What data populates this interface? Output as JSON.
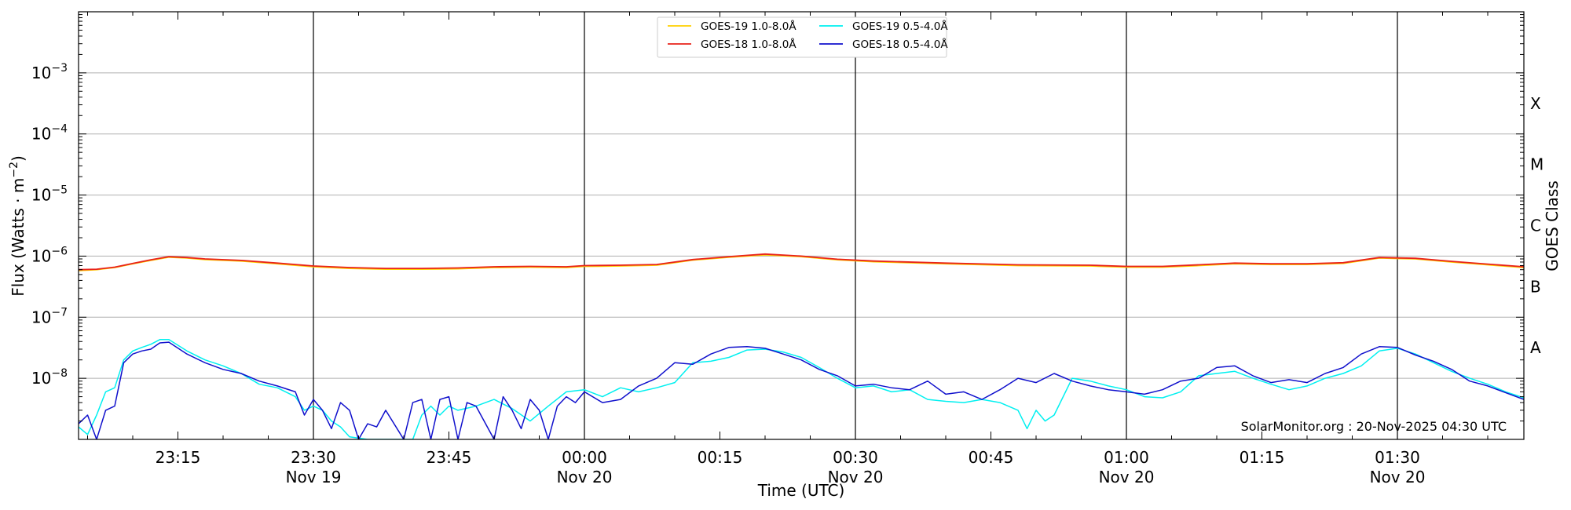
{
  "chart_data": {
    "type": "line",
    "xlabel": "Time (UTC)",
    "ylabel_main": "Flux (Watts · m",
    "ylabel_sup": "−2",
    "ylabel_close": ")",
    "right_axis_label": "GOES Class",
    "credit": "SolarMonitor.org : 20-Nov-2025 04:30 UTC",
    "x_range": [
      "23:04",
      "01:44"
    ],
    "ylim": [
      1e-09,
      0.01
    ],
    "y_scale": "log",
    "grid": "horizontal at decades",
    "legend_placement": "upper-center",
    "y_ticks": [
      {
        "value": 1e-08,
        "base": "10",
        "exp": "−8"
      },
      {
        "value": 1e-07,
        "base": "10",
        "exp": "−7"
      },
      {
        "value": 1e-06,
        "base": "10",
        "exp": "−6"
      },
      {
        "value": 1e-05,
        "base": "10",
        "exp": "−5"
      },
      {
        "value": 0.0001,
        "base": "10",
        "exp": "−4"
      },
      {
        "value": 0.001,
        "base": "10",
        "exp": "−3"
      }
    ],
    "x_ticks": [
      {
        "time": "23:15",
        "label": "23:15",
        "date": ""
      },
      {
        "time": "23:30",
        "label": "23:30",
        "date": "Nov 19"
      },
      {
        "time": "23:45",
        "label": "23:45",
        "date": ""
      },
      {
        "time": "00:00",
        "label": "00:00",
        "date": "Nov 20"
      },
      {
        "time": "00:15",
        "label": "00:15",
        "date": ""
      },
      {
        "time": "00:30",
        "label": "00:30",
        "date": "Nov 20"
      },
      {
        "time": "00:45",
        "label": "00:45",
        "date": ""
      },
      {
        "time": "01:00",
        "label": "01:00",
        "date": "Nov 20"
      },
      {
        "time": "01:15",
        "label": "01:15",
        "date": ""
      },
      {
        "time": "01:30",
        "label": "01:30",
        "date": "Nov 20"
      }
    ],
    "day_boundaries": [
      "23:30",
      "00:00",
      "00:30",
      "01:00",
      "01:30"
    ],
    "goes_classes": [
      {
        "label": "A",
        "value": 3.16e-08
      },
      {
        "label": "B",
        "value": 3.16e-07
      },
      {
        "label": "C",
        "value": 3.16e-06
      },
      {
        "label": "M",
        "value": 3.16e-05
      },
      {
        "label": "X",
        "value": 0.000316
      }
    ],
    "series": [
      {
        "name": "GOES-19 1.0-8.0Å",
        "color": "#FFD000",
        "x": [
          "23:04",
          "23:06",
          "23:08",
          "23:10",
          "23:12",
          "23:14",
          "23:16",
          "23:18",
          "23:22",
          "23:26",
          "23:30",
          "23:34",
          "23:38",
          "23:42",
          "23:46",
          "23:50",
          "23:54",
          "23:58",
          "00:00",
          "00:04",
          "00:08",
          "00:12",
          "00:16",
          "00:20",
          "00:24",
          "00:28",
          "00:32",
          "00:40",
          "00:48",
          "00:56",
          "01:00",
          "01:04",
          "01:08",
          "01:12",
          "01:16",
          "01:20",
          "01:24",
          "01:28",
          "01:32",
          "01:36",
          "01:40",
          "01:44"
        ],
        "y": [
          5.8e-07,
          6e-07,
          6.5e-07,
          7.5e-07,
          8.5e-07,
          9.6e-07,
          9.3e-07,
          8.8e-07,
          8.3e-07,
          7.5e-07,
          6.7e-07,
          6.3e-07,
          6.1e-07,
          6.1e-07,
          6.2e-07,
          6.5e-07,
          6.6e-07,
          6.5e-07,
          6.8e-07,
          6.9e-07,
          7.1e-07,
          8.6e-07,
          9.6e-07,
          1.05e-06,
          9.8e-07,
          8.7e-07,
          8.1e-07,
          7.5e-07,
          7e-07,
          6.9e-07,
          6.6e-07,
          6.6e-07,
          7e-07,
          7.5e-07,
          7.3e-07,
          7.3e-07,
          7.6e-07,
          9.3e-07,
          9e-07,
          8e-07,
          7.2e-07,
          6.5e-07
        ]
      },
      {
        "name": "GOES-18 1.0-8.0Å",
        "color": "#E8221A",
        "x": [
          "23:04",
          "23:06",
          "23:08",
          "23:10",
          "23:12",
          "23:14",
          "23:16",
          "23:18",
          "23:22",
          "23:26",
          "23:30",
          "23:34",
          "23:38",
          "23:42",
          "23:46",
          "23:50",
          "23:54",
          "23:58",
          "00:00",
          "00:04",
          "00:08",
          "00:12",
          "00:16",
          "00:20",
          "00:24",
          "00:28",
          "00:32",
          "00:40",
          "00:48",
          "00:56",
          "01:00",
          "01:04",
          "01:08",
          "01:12",
          "01:16",
          "01:20",
          "01:24",
          "01:28",
          "01:32",
          "01:36",
          "01:40",
          "01:44"
        ],
        "y": [
          6e-07,
          6.1e-07,
          6.6e-07,
          7.6e-07,
          8.7e-07,
          9.8e-07,
          9.5e-07,
          9e-07,
          8.5e-07,
          7.7e-07,
          6.9e-07,
          6.5e-07,
          6.3e-07,
          6.3e-07,
          6.4e-07,
          6.7e-07,
          6.8e-07,
          6.7e-07,
          7e-07,
          7.1e-07,
          7.3e-07,
          8.8e-07,
          9.8e-07,
          1.08e-06,
          1e-06,
          8.9e-07,
          8.3e-07,
          7.7e-07,
          7.2e-07,
          7.1e-07,
          6.8e-07,
          6.8e-07,
          7.2e-07,
          7.7e-07,
          7.5e-07,
          7.5e-07,
          7.8e-07,
          9.5e-07,
          9.2e-07,
          8.2e-07,
          7.4e-07,
          6.7e-07
        ]
      },
      {
        "name": "GOES-19 0.5-4.0Å",
        "color": "#00F0F0",
        "x": [
          "23:04",
          "23:05",
          "23:06",
          "23:07",
          "23:08",
          "23:09",
          "23:10",
          "23:11",
          "23:12",
          "23:13",
          "23:14",
          "23:16",
          "23:18",
          "23:20",
          "23:22",
          "23:24",
          "23:26",
          "23:28",
          "23:29",
          "23:30",
          "23:31",
          "23:32",
          "23:33",
          "23:34",
          "23:36",
          "23:38",
          "23:40",
          "23:41",
          "23:42",
          "23:43",
          "23:44",
          "23:45",
          "23:46",
          "23:48",
          "23:50",
          "23:52",
          "23:54",
          "23:56",
          "23:58",
          "00:00",
          "00:02",
          "00:04",
          "00:06",
          "00:08",
          "00:10",
          "00:12",
          "00:14",
          "00:16",
          "00:18",
          "00:20",
          "00:22",
          "00:24",
          "00:26",
          "00:28",
          "00:30",
          "00:32",
          "00:34",
          "00:36",
          "00:38",
          "00:40",
          "00:42",
          "00:44",
          "00:46",
          "00:48",
          "00:49",
          "00:50",
          "00:51",
          "00:52",
          "00:54",
          "00:56",
          "00:58",
          "01:00",
          "01:02",
          "01:04",
          "01:06",
          "01:08",
          "01:10",
          "01:12",
          "01:14",
          "01:16",
          "01:18",
          "01:20",
          "01:22",
          "01:24",
          "01:26",
          "01:28",
          "01:30",
          "01:32",
          "01:34",
          "01:36",
          "01:38",
          "01:40",
          "01:42",
          "01:44"
        ],
        "y": [
          1.6e-09,
          1.2e-09,
          2.5e-09,
          6e-09,
          7e-09,
          2e-08,
          2.8e-08,
          3.2e-08,
          3.6e-08,
          4.3e-08,
          4.3e-08,
          2.8e-08,
          2e-08,
          1.6e-08,
          1.2e-08,
          8e-09,
          7e-09,
          5e-09,
          3e-09,
          3.5e-09,
          3e-09,
          2e-09,
          1.6e-09,
          1.1e-09,
          1e-09,
          1e-09,
          1e-09,
          1e-09,
          2.5e-09,
          3.5e-09,
          2.5e-09,
          3.5e-09,
          3e-09,
          3.5e-09,
          4.5e-09,
          3.2e-09,
          2e-09,
          3.5e-09,
          6e-09,
          6.5e-09,
          5e-09,
          7e-09,
          6e-09,
          7e-09,
          8.5e-09,
          1.8e-08,
          1.9e-08,
          2.2e-08,
          2.9e-08,
          3e-08,
          2.7e-08,
          2.2e-08,
          1.5e-08,
          1e-08,
          7e-09,
          7.5e-09,
          6e-09,
          6.5e-09,
          4.5e-09,
          4.2e-09,
          4e-09,
          4.5e-09,
          4e-09,
          3e-09,
          1.5e-09,
          3e-09,
          2e-09,
          2.5e-09,
          1e-08,
          9e-09,
          7.5e-09,
          6.5e-09,
          5e-09,
          4.8e-09,
          6e-09,
          1.1e-08,
          1.2e-08,
          1.3e-08,
          1e-08,
          8e-09,
          6.5e-09,
          7.5e-09,
          1e-08,
          1.2e-08,
          1.6e-08,
          2.8e-08,
          3.1e-08,
          2.5e-08,
          1.8e-08,
          1.3e-08,
          1e-08,
          8e-09,
          6e-09,
          4.8e-09
        ]
      },
      {
        "name": "GOES-18 0.5-4.0Å",
        "color": "#1010CC",
        "x": [
          "23:04",
          "23:05",
          "23:06",
          "23:07",
          "23:08",
          "23:09",
          "23:10",
          "23:11",
          "23:12",
          "23:13",
          "23:14",
          "23:16",
          "23:18",
          "23:20",
          "23:22",
          "23:24",
          "23:26",
          "23:28",
          "23:29",
          "23:30",
          "23:31",
          "23:32",
          "23:33",
          "23:34",
          "23:35",
          "23:36",
          "23:37",
          "23:38",
          "23:40",
          "23:41",
          "23:42",
          "23:43",
          "23:44",
          "23:45",
          "23:46",
          "23:47",
          "23:48",
          "23:50",
          "23:51",
          "23:52",
          "23:53",
          "23:54",
          "23:55",
          "23:56",
          "23:57",
          "23:58",
          "23:59",
          "00:00",
          "00:02",
          "00:04",
          "00:06",
          "00:08",
          "00:10",
          "00:12",
          "00:14",
          "00:16",
          "00:18",
          "00:20",
          "00:22",
          "00:24",
          "00:26",
          "00:28",
          "00:30",
          "00:32",
          "00:34",
          "00:36",
          "00:38",
          "00:40",
          "00:42",
          "00:44",
          "00:46",
          "00:48",
          "00:50",
          "00:52",
          "00:54",
          "00:56",
          "00:58",
          "01:00",
          "01:02",
          "01:04",
          "01:06",
          "01:08",
          "01:10",
          "01:12",
          "01:14",
          "01:16",
          "01:18",
          "01:20",
          "01:22",
          "01:24",
          "01:26",
          "01:28",
          "01:30",
          "01:32",
          "01:34",
          "01:36",
          "01:38",
          "01:40",
          "01:42",
          "01:44"
        ],
        "y": [
          1.8e-09,
          2.5e-09,
          1e-09,
          3e-09,
          3.5e-09,
          1.8e-08,
          2.5e-08,
          2.8e-08,
          3e-08,
          3.8e-08,
          3.9e-08,
          2.5e-08,
          1.8e-08,
          1.4e-08,
          1.2e-08,
          9e-09,
          7.5e-09,
          6e-09,
          2.5e-09,
          4.5e-09,
          3e-09,
          1.5e-09,
          4e-09,
          3e-09,
          1e-09,
          1.8e-09,
          1.6e-09,
          3e-09,
          1e-09,
          4e-09,
          4.5e-09,
          1e-09,
          4.5e-09,
          5e-09,
          1e-09,
          4e-09,
          3.5e-09,
          1e-09,
          5e-09,
          3e-09,
          1.5e-09,
          4.5e-09,
          3e-09,
          1e-09,
          3.5e-09,
          5e-09,
          4e-09,
          6e-09,
          4e-09,
          4.5e-09,
          7.5e-09,
          1e-08,
          1.8e-08,
          1.7e-08,
          2.5e-08,
          3.2e-08,
          3.3e-08,
          3.1e-08,
          2.5e-08,
          2e-08,
          1.4e-08,
          1.1e-08,
          7.5e-09,
          8e-09,
          7e-09,
          6.5e-09,
          9e-09,
          5.5e-09,
          6e-09,
          4.5e-09,
          6.5e-09,
          1e-08,
          8.5e-09,
          1.2e-08,
          9e-09,
          7.5e-09,
          6.5e-09,
          6e-09,
          5.5e-09,
          6.5e-09,
          9e-09,
          1e-08,
          1.5e-08,
          1.6e-08,
          1.1e-08,
          8.5e-09,
          9.5e-09,
          8.5e-09,
          1.2e-08,
          1.5e-08,
          2.5e-08,
          3.3e-08,
          3.2e-08,
          2.4e-08,
          1.9e-08,
          1.4e-08,
          9e-09,
          7.5e-09,
          5.8e-09,
          4.5e-09
        ]
      }
    ]
  }
}
